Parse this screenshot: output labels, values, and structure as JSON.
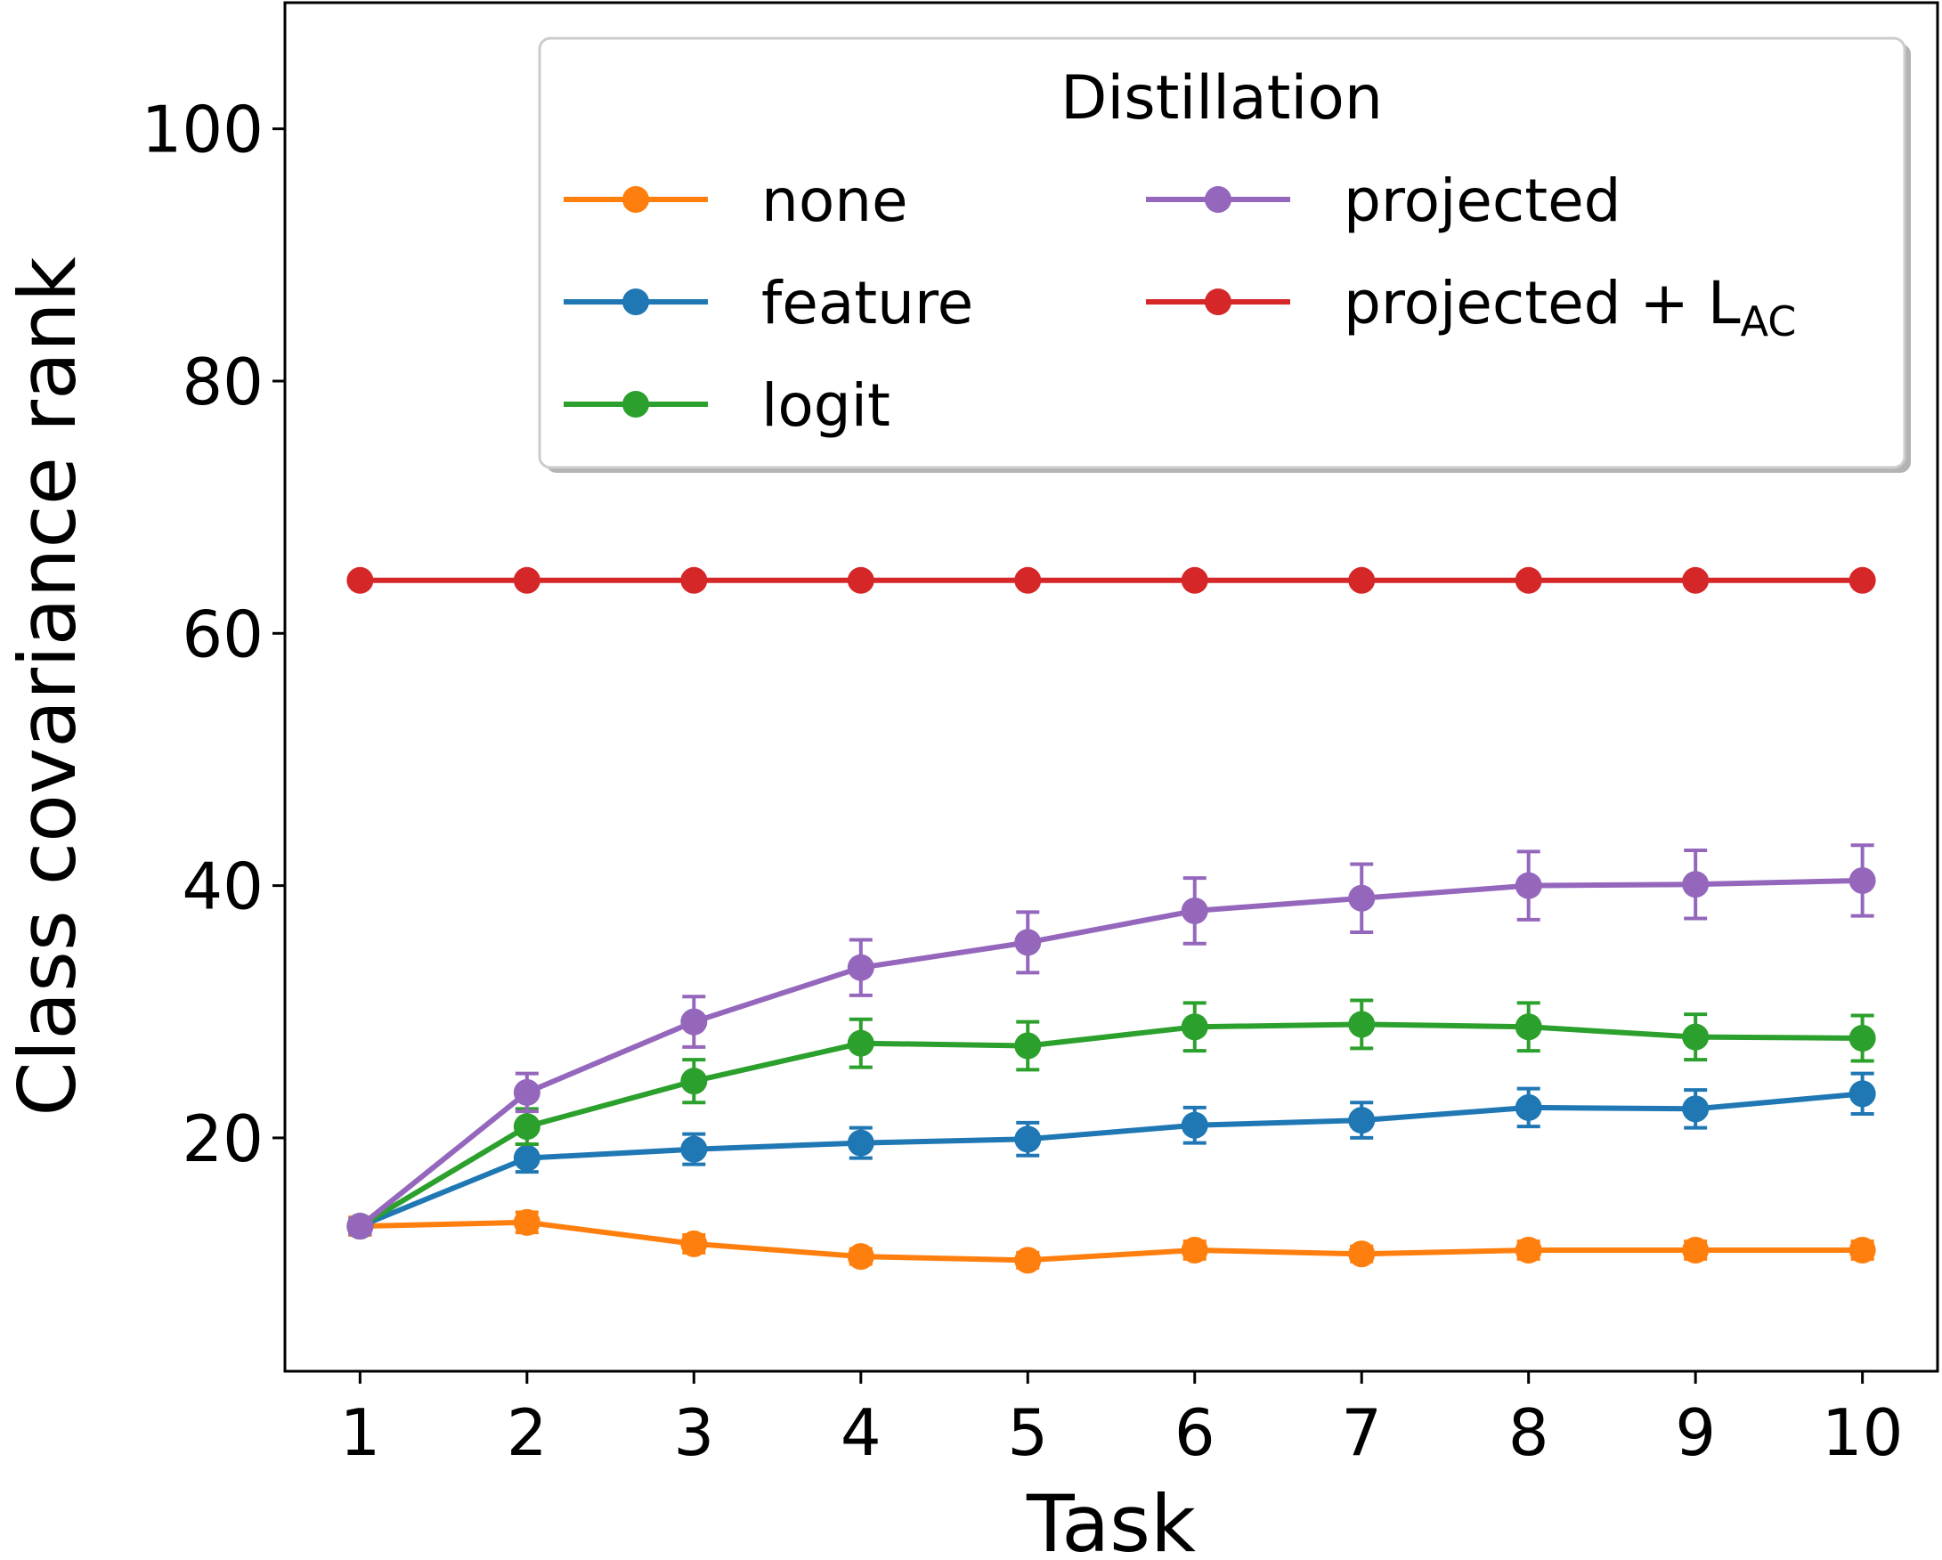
{
  "chart_data": {
    "type": "line",
    "xlabel": "Task",
    "ylabel": "Class covariance rank",
    "x": [
      1,
      2,
      3,
      4,
      5,
      6,
      7,
      8,
      9,
      10
    ],
    "xticks": [
      "1",
      "2",
      "3",
      "4",
      "5",
      "6",
      "7",
      "8",
      "9",
      "10"
    ],
    "yticks": [
      20,
      40,
      60,
      80,
      100
    ],
    "ytick_labels": [
      "20",
      "40",
      "60",
      "80",
      "100"
    ],
    "xlim": [
      0.55,
      10.45
    ],
    "ylim": [
      1.5,
      110
    ],
    "grid": false,
    "legend": {
      "title": "Distillation",
      "placement": "top-right",
      "columns": 2
    },
    "series": [
      {
        "name": "none",
        "color": "#ff7f0e",
        "values": [
          13.0,
          13.3,
          11.6,
          10.6,
          10.3,
          11.1,
          10.8,
          11.1,
          11.1,
          11.1
        ],
        "errors": [
          0.7,
          0.8,
          0.7,
          0.6,
          0.6,
          0.7,
          0.6,
          0.7,
          0.7,
          0.7
        ]
      },
      {
        "name": "feature",
        "color": "#1f77b4",
        "values": [
          13.0,
          18.4,
          19.1,
          19.6,
          19.9,
          21.0,
          21.4,
          22.4,
          22.3,
          23.5
        ],
        "errors": [
          0.6,
          1.1,
          1.2,
          1.2,
          1.3,
          1.4,
          1.4,
          1.5,
          1.5,
          1.6
        ]
      },
      {
        "name": "logit",
        "color": "#2ca02c",
        "values": [
          13.0,
          20.9,
          24.5,
          27.5,
          27.3,
          28.8,
          29.0,
          28.8,
          28.0,
          27.9
        ],
        "errors": [
          0.6,
          1.4,
          1.7,
          1.9,
          1.9,
          1.9,
          1.9,
          1.9,
          1.8,
          1.8
        ]
      },
      {
        "name": "projected",
        "color": "#9467bd",
        "values": [
          13.0,
          23.6,
          29.2,
          33.5,
          35.5,
          38.0,
          39.0,
          40.0,
          40.1,
          40.4
        ],
        "errors": [
          0.6,
          1.5,
          2.0,
          2.2,
          2.4,
          2.6,
          2.7,
          2.7,
          2.7,
          2.8
        ]
      },
      {
        "name": "projected + L",
        "subscript": "AC",
        "color": "#d62728",
        "values": [
          64.2,
          64.2,
          64.2,
          64.2,
          64.2,
          64.2,
          64.2,
          64.2,
          64.2,
          64.2
        ],
        "errors": [
          0,
          0,
          0,
          0,
          0,
          0,
          0,
          0,
          0,
          0
        ]
      }
    ]
  }
}
